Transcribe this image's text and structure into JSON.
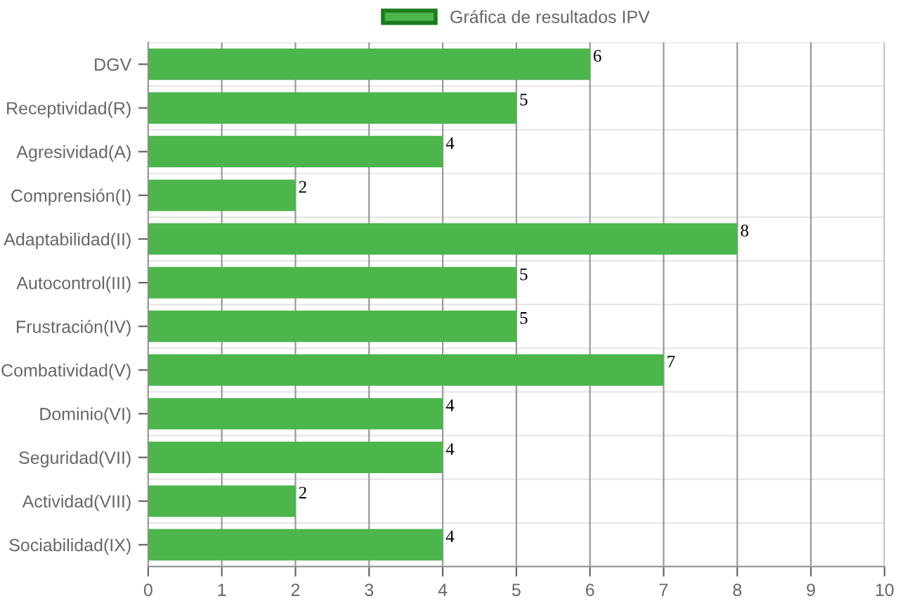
{
  "chart_data": {
    "type": "bar",
    "orientation": "horizontal",
    "categories": [
      "DGV",
      "Receptividad(R)",
      "Agresividad(A)",
      "Comprensión(I)",
      "Adaptabilidad(II)",
      "Autocontrol(III)",
      "Frustración(IV)",
      "Combatividad(V)",
      "Dominio(VI)",
      "Seguridad(VII)",
      "Actividad(VIII)",
      "Sociabilidad(IX)"
    ],
    "series": [
      {
        "name": "Gráfica de resultados IPV",
        "color": "#4cb54c",
        "values": [
          6,
          5,
          4,
          2,
          8,
          5,
          5,
          7,
          4,
          4,
          2,
          4
        ]
      }
    ],
    "xlim": [
      0,
      10
    ],
    "xticks": [
      0,
      1,
      2,
      3,
      4,
      5,
      6,
      7,
      8,
      9,
      10
    ],
    "grid": true,
    "legend": "top",
    "data_labels": true
  }
}
